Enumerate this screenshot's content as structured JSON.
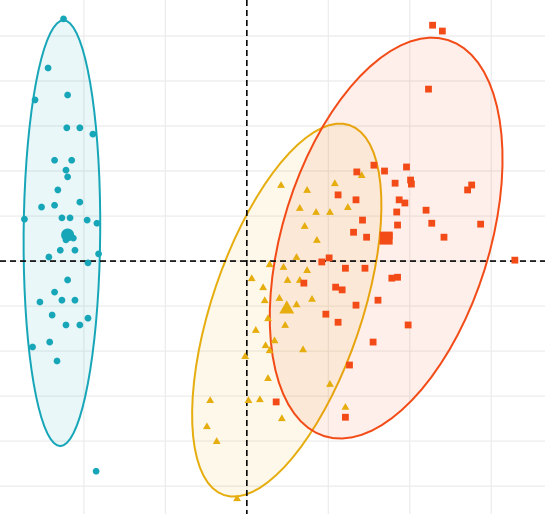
{
  "chart_data": {
    "type": "scatter",
    "xlim": [
      -3.03,
      3.66
    ],
    "ylim": [
      -5.62,
      5.8
    ],
    "xticks": [
      -2,
      -1,
      0,
      1,
      2,
      3
    ],
    "yticks": [
      -5,
      -4,
      -3,
      -2,
      -1,
      0,
      1,
      2,
      3,
      4,
      5
    ],
    "grid": true,
    "hline": 0,
    "vline": 0,
    "series": [
      {
        "color": "#17a6b8",
        "marker": "circle",
        "x": [
          -2.25,
          -2.44,
          -2.6,
          -2.2,
          -2.21,
          -2.05,
          -1.89,
          -2.36,
          -2.15,
          -2.22,
          -2.2,
          -2.32,
          -2.05,
          -2.52,
          -2.36,
          -2.73,
          -2.27,
          -2.17,
          -1.96,
          -1.84,
          -2.2,
          -2.22,
          -2.13,
          -2.29,
          -2.11,
          -2.43,
          -1.82,
          -1.95,
          -2.2,
          -2.36,
          -2.54,
          -2.27,
          -2.11,
          -2.39,
          -1.95,
          -2.22,
          -2.05,
          -2.63,
          -2.42,
          -2.33,
          -1.85
        ],
        "y": [
          5.38,
          4.29,
          3.58,
          3.69,
          2.96,
          2.96,
          2.82,
          2.24,
          2.24,
          2.02,
          1.87,
          1.58,
          1.31,
          1.2,
          1.24,
          0.93,
          0.96,
          0.96,
          0.91,
          0.84,
          0.58,
          0.47,
          0.51,
          0.24,
          0.24,
          0.09,
          0.16,
          -0.04,
          -0.42,
          -0.69,
          -0.91,
          -0.87,
          -0.87,
          -1.2,
          -1.27,
          -1.42,
          -1.42,
          -1.91,
          -1.8,
          -2.22,
          -4.67
        ],
        "centroid": [
          -2.2,
          0.58
        ],
        "ellipse": {
          "center": [
            -2.27,
            0.62
          ],
          "axis1": [
            0.02,
            4.73
          ],
          "axis2": [
            0.47,
            0
          ]
        }
      },
      {
        "color": "#e6ad0f",
        "marker": "triangle",
        "x": [
          0.42,
          0.74,
          1.08,
          1.41,
          1.24,
          0.85,
          1.02,
          0.65,
          0.71,
          0.86,
          0.61,
          0.45,
          0.28,
          0.06,
          0.2,
          0.5,
          0.65,
          0.74,
          0.22,
          0.4,
          0.5,
          0.61,
          0.8,
          0.26,
          0.47,
          0.34,
          0.23,
          -0.02,
          0.28,
          0.69,
          0.26,
          0.16,
          0.02,
          1.02,
          1.21,
          -0.45,
          -0.49,
          -0.37,
          -0.12,
          0.43,
          0.11
        ],
        "y": [
          1.69,
          1.58,
          1.73,
          1.91,
          1.2,
          1.09,
          1.09,
          1.18,
          0.78,
          0.47,
          0.09,
          -0.13,
          -0.07,
          -0.38,
          -0.58,
          -0.42,
          -0.42,
          -0.2,
          -0.87,
          -0.82,
          -1.04,
          -0.96,
          -0.84,
          -1.27,
          -1.42,
          -1.76,
          -1.87,
          -2.11,
          -1.98,
          -1.96,
          -2.6,
          -3.07,
          -3.09,
          -2.73,
          -3.24,
          -3.09,
          -3.67,
          -4.0,
          -5.27,
          -3.49,
          -1.53
        ],
        "centroid": [
          0.49,
          -1.04
        ],
        "ellipse": {
          "center": [
            0.49,
            -1.09
          ],
          "axis1": [
            0.77,
            4.11
          ],
          "axis2": [
            0.87,
            -0.53
          ]
        }
      },
      {
        "color": "#f24b17",
        "marker": "square",
        "x": [
          2.28,
          2.4,
          2.23,
          1.56,
          1.69,
          1.96,
          1.82,
          2.01,
          2.02,
          1.35,
          1.12,
          2.76,
          2.71,
          1.87,
          1.94,
          2.2,
          1.34,
          1.42,
          1.84,
          1.69,
          1.75,
          1.85,
          1.47,
          1.31,
          2.42,
          2.87,
          2.27,
          3.29,
          1.01,
          0.92,
          1.21,
          1.45,
          1.78,
          1.85,
          1.09,
          1.17,
          1.34,
          1.61,
          0.97,
          1.12,
          1.98,
          1.55,
          1.26,
          0.36,
          1.21,
          0.7
        ],
        "y": [
          5.24,
          5.11,
          3.82,
          2.13,
          2.0,
          2.09,
          1.73,
          1.8,
          1.71,
          1.98,
          1.47,
          1.69,
          1.58,
          1.36,
          1.29,
          1.13,
          1.36,
          0.91,
          1.09,
          0.51,
          0.56,
          0.8,
          0.53,
          0.64,
          0.53,
          0.82,
          0.84,
          0.02,
          0.07,
          -0.02,
          -0.16,
          -0.16,
          -0.38,
          -0.36,
          -0.58,
          -0.64,
          -0.98,
          -0.87,
          -1.18,
          -1.36,
          -1.42,
          -1.8,
          -2.31,
          -3.13,
          -3.47,
          -0.49
        ],
        "centroid": [
          1.71,
          0.51
        ],
        "ellipse": {
          "center": [
            1.71,
            0.51
          ],
          "axis1": [
            0.76,
            4.4
          ],
          "axis2": [
            1.21,
            -0.69
          ]
        }
      }
    ]
  }
}
